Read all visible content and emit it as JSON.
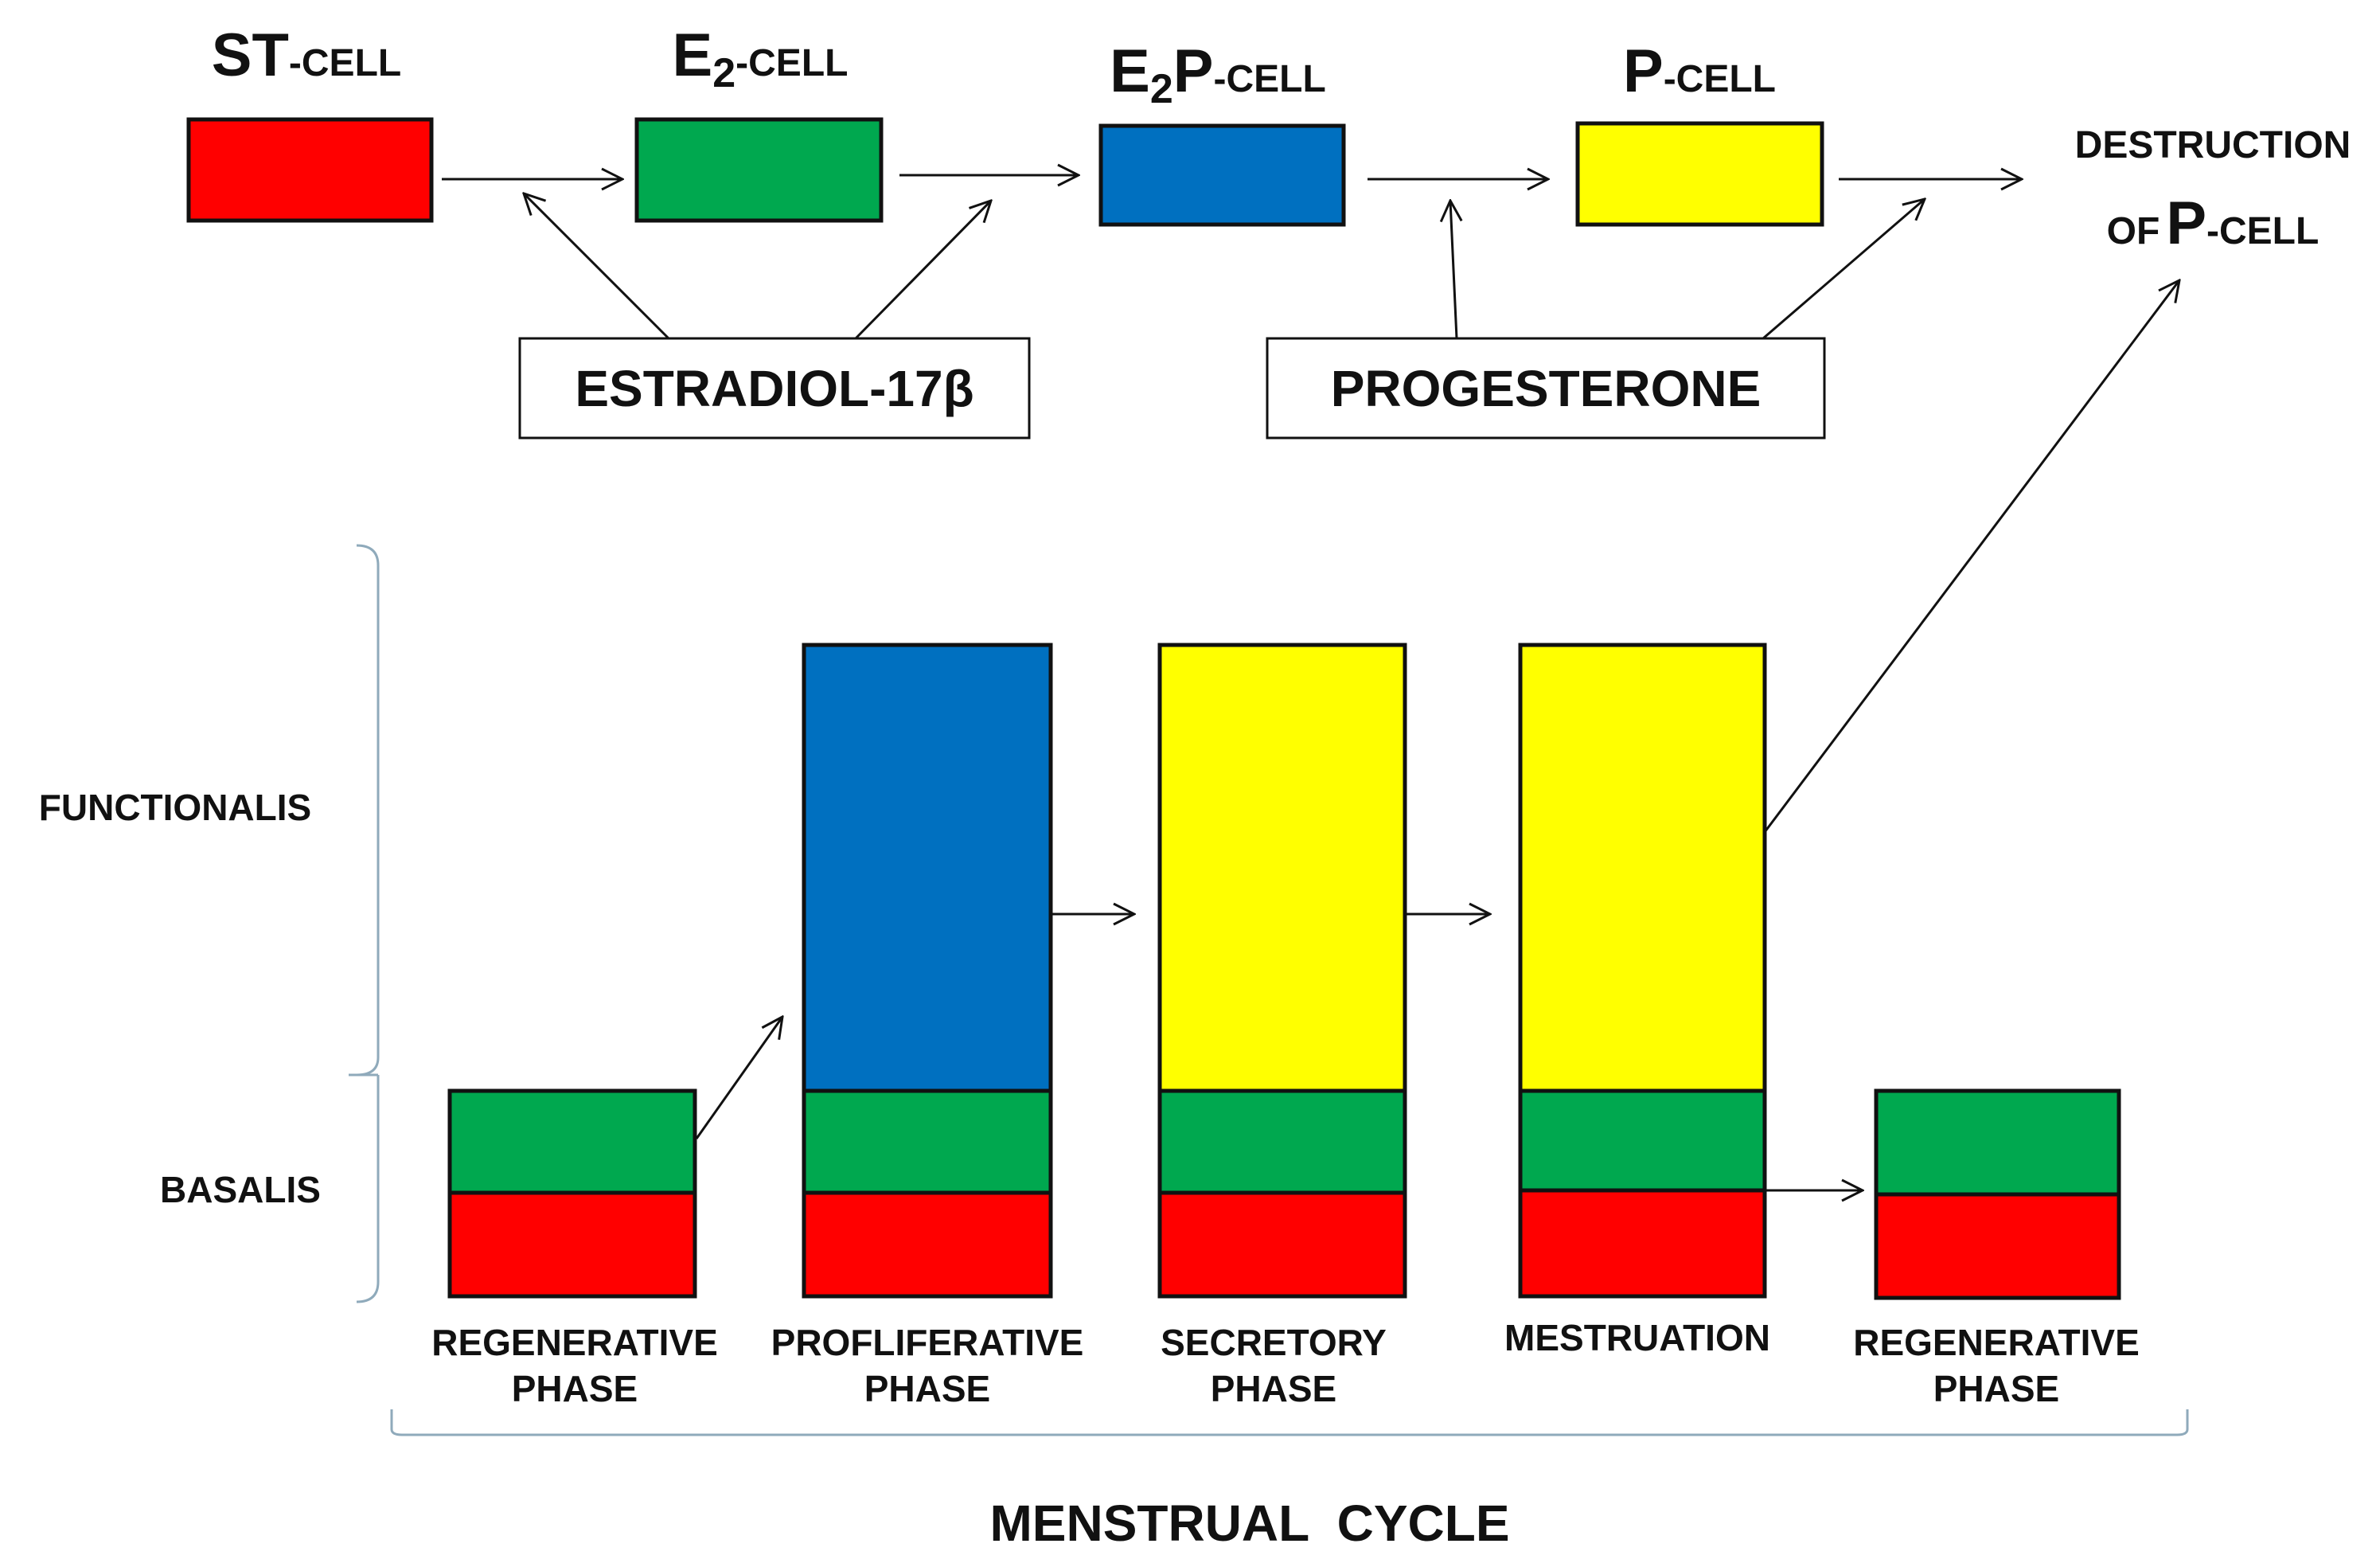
{
  "colors": {
    "st_cell": "#ff0000",
    "e2_cell": "#00a84f",
    "e2p_cell": "#0070c0",
    "p_cell": "#ffff00",
    "outline": "#111111",
    "bracket": "#8faabb",
    "background": "#ffffff"
  },
  "cells": {
    "st": {
      "main": "ST",
      "suffix": "-CELL"
    },
    "e2": {
      "main": "E",
      "sub": "2",
      "suffix": "-CELL"
    },
    "e2p": {
      "main": "E",
      "sub": "2",
      "main2": "P",
      "suffix": "-CELL"
    },
    "p": {
      "main": "P",
      "suffix": "-CELL"
    }
  },
  "destruction": {
    "line1": "DESTRUCTION",
    "prefix": "OF",
    "main": "P",
    "suffix": "-CELL"
  },
  "hormones": {
    "estradiol": "ESTRADIOL-17β",
    "progesterone": "PROGESTERONE"
  },
  "layers": {
    "functionalis": "FUNCTIONALIS",
    "basalis": "BASALIS"
  },
  "phases": [
    {
      "line1": "REGENERATIVE",
      "line2": "PHASE"
    },
    {
      "line1": "PROFLIFERATIVE",
      "line2": "PHASE"
    },
    {
      "line1": "SECRETORY",
      "line2": "PHASE"
    },
    {
      "line1": "MESTRUATION",
      "line2": ""
    },
    {
      "line1": "REGENERATIVE",
      "line2": "PHASE"
    }
  ],
  "cycle_label": "MENSTRUAL  CYCLE"
}
